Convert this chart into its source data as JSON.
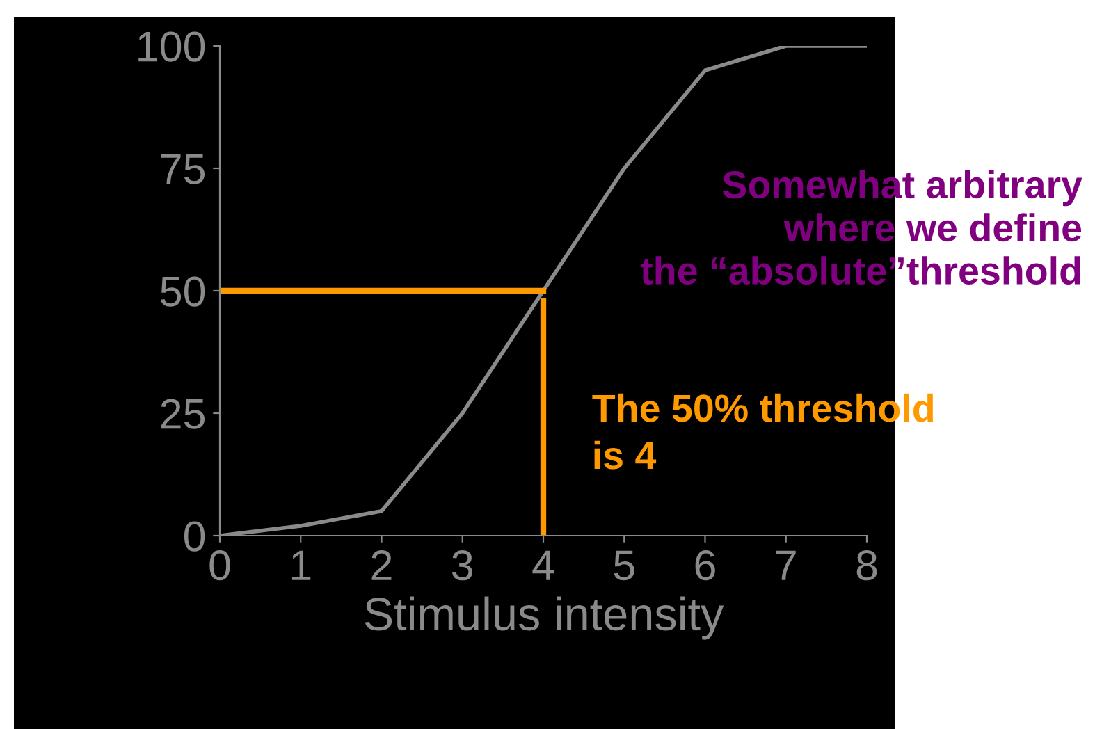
{
  "chart_data": {
    "type": "line",
    "xlabel": "Stimulus intensity",
    "x": [
      0,
      1,
      2,
      3,
      4,
      5,
      6,
      7,
      8
    ],
    "series": [
      {
        "color": "#8a8a8a",
        "values": [
          0,
          2,
          5,
          25,
          50,
          75,
          95,
          100,
          100
        ]
      }
    ],
    "xlim": [
      0,
      8
    ],
    "xticks": [
      0,
      1,
      2,
      3,
      4,
      5,
      6,
      7,
      8
    ],
    "ylim": [
      0,
      100
    ],
    "yticks": [
      0,
      25,
      50,
      75,
      100
    ],
    "grid": false,
    "legend": false,
    "marker": "none",
    "line_style": "solid",
    "ref_lines": [
      {
        "axis": "y",
        "value": 50,
        "label": null,
        "color": "#ff9900"
      },
      {
        "axis": "x",
        "value": 4,
        "label": "The 50% threshold\nis 4",
        "color": "#ff9900"
      }
    ],
    "annotations": [
      "Somewhat arbitrary\nwhere we define\nthe “absolute”threshold"
    ]
  }
}
